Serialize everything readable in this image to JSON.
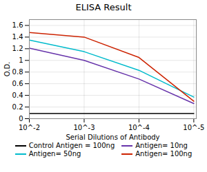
{
  "chart_data": {
    "type": "line",
    "title": "ELISA Result",
    "xlabel": "Serial Dilutions of Antibody",
    "ylabel": "O.D.",
    "x": [
      0.01,
      0.001,
      0.0001,
      1e-05
    ],
    "series": [
      {
        "name": "Control Antigen = 100ng",
        "color": "#000000",
        "values": [
          0.09,
          0.09,
          0.09,
          0.09
        ]
      },
      {
        "name": "Antigen= 10ng",
        "color": "#6633aa",
        "values": [
          1.21,
          1.0,
          0.68,
          0.26
        ]
      },
      {
        "name": "Antigen= 50ng",
        "color": "#00bbcc",
        "values": [
          1.35,
          1.15,
          0.83,
          0.37
        ]
      },
      {
        "name": "Antigen= 100ng",
        "color": "#cc2200",
        "values": [
          1.48,
          1.4,
          1.05,
          0.3
        ]
      }
    ],
    "log": "x",
    "xlim": [
      0.01,
      9e-06
    ],
    "xticks": [
      {
        "value": 0.01,
        "label": "10^-2"
      },
      {
        "value": 0.001,
        "label": "10^-3"
      },
      {
        "value": 0.0001,
        "label": "10^-4"
      },
      {
        "value": 1e-05,
        "label": "10^-5"
      }
    ],
    "ylim": [
      0,
      1.7
    ],
    "yticks": [
      0,
      0.2,
      0.4,
      0.6,
      0.8,
      1,
      1.2,
      1.4,
      1.6
    ],
    "grid": true,
    "legend": "bottom"
  }
}
